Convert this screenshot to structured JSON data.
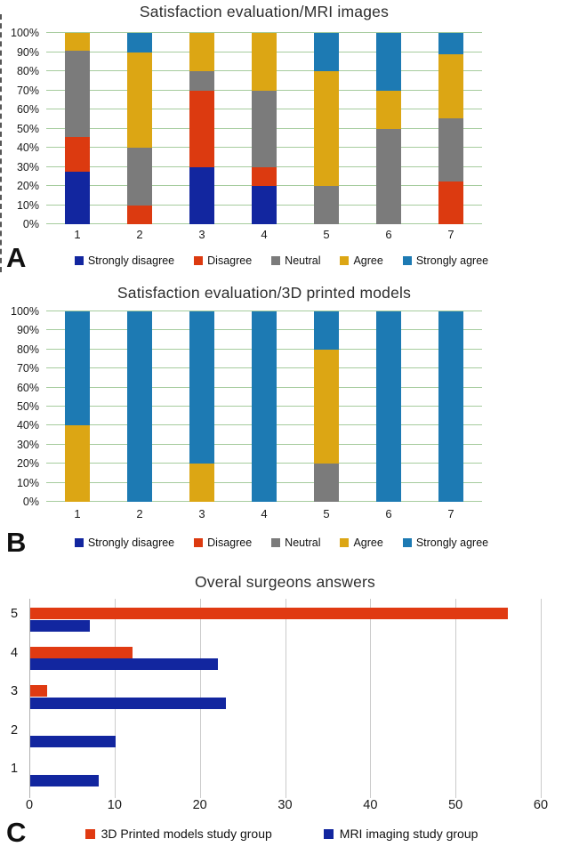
{
  "figure": {
    "panels": [
      {
        "label": "A"
      },
      {
        "label": "B"
      },
      {
        "label": "C"
      }
    ]
  },
  "palette": {
    "strongly_disagree": "#12269f",
    "disagree": "#dc3a10",
    "neutral": "#7b7b7b",
    "agree": "#dca614",
    "strongly_agree": "#1d7ab3",
    "grid_green": "#a6cc9e",
    "grid_gray": "#cbcbcb",
    "axis_gray": "#b0b0b0",
    "title_text": "#2e2e2e"
  },
  "chart_data": [
    {
      "panel": "A",
      "type": "bar",
      "subtype": "stacked-column-100",
      "title": "Satisfaction evaluation/MRI images",
      "categories": [
        "1",
        "2",
        "3",
        "4",
        "5",
        "6",
        "7"
      ],
      "y_tick_labels": [
        "0%",
        "10%",
        "20%",
        "30%",
        "40%",
        "50%",
        "60%",
        "70%",
        "80%",
        "90%",
        "100%"
      ],
      "ylim": [
        0,
        100
      ],
      "grid": true,
      "legend_position": "bottom",
      "series": [
        {
          "name": "Strongly disagree",
          "color": "#12269f",
          "values": [
            27.3,
            0,
            30,
            20,
            0,
            0,
            0
          ]
        },
        {
          "name": "Disagree",
          "color": "#dc3a10",
          "values": [
            18.2,
            10,
            40,
            10,
            0,
            0,
            22.2
          ]
        },
        {
          "name": "Neutral",
          "color": "#7b7b7b",
          "values": [
            45.4,
            30,
            10,
            40,
            20,
            50,
            33.3
          ]
        },
        {
          "name": "Agree",
          "color": "#dca614",
          "values": [
            9.1,
            50,
            20,
            30,
            60,
            20,
            33.4
          ]
        },
        {
          "name": "Strongly agree",
          "color": "#1d7ab3",
          "values": [
            0,
            10,
            0,
            0,
            20,
            30,
            11.1
          ]
        }
      ]
    },
    {
      "panel": "B",
      "type": "bar",
      "subtype": "stacked-column-100",
      "title": "Satisfaction evaluation/3D printed models",
      "categories": [
        "1",
        "2",
        "3",
        "4",
        "5",
        "6",
        "7"
      ],
      "y_tick_labels": [
        "0%",
        "10%",
        "20%",
        "30%",
        "40%",
        "50%",
        "60%",
        "70%",
        "80%",
        "90%",
        "100%"
      ],
      "ylim": [
        0,
        100
      ],
      "grid": true,
      "legend_position": "bottom",
      "series": [
        {
          "name": "Strongly disagree",
          "color": "#12269f",
          "values": [
            0,
            0,
            0,
            0,
            0,
            0,
            0
          ]
        },
        {
          "name": "Disagree",
          "color": "#dc3a10",
          "values": [
            0,
            0,
            0,
            0,
            0,
            0,
            0
          ]
        },
        {
          "name": "Neutral",
          "color": "#7b7b7b",
          "values": [
            0,
            0,
            0,
            0,
            20,
            0,
            0
          ]
        },
        {
          "name": "Agree",
          "color": "#dca614",
          "values": [
            40,
            0,
            20,
            0,
            60,
            0,
            0
          ]
        },
        {
          "name": "Strongly agree",
          "color": "#1d7ab3",
          "values": [
            60,
            100,
            80,
            100,
            20,
            100,
            100
          ]
        }
      ]
    },
    {
      "panel": "C",
      "type": "bar",
      "subtype": "grouped-bar-horizontal",
      "title": "Overal surgeons answers",
      "categories": [
        "5",
        "4",
        "3",
        "2",
        "1"
      ],
      "x_tick_labels": [
        "0",
        "10",
        "20",
        "30",
        "40",
        "50",
        "60"
      ],
      "xlim": [
        0,
        60
      ],
      "grid": true,
      "legend_position": "bottom",
      "series": [
        {
          "name": "3D Printed models study group",
          "color": "#e03a12",
          "values": [
            56,
            12,
            2,
            0,
            0
          ]
        },
        {
          "name": "MRI imaging study group",
          "color": "#12269f",
          "values": [
            7,
            22,
            23,
            10,
            8
          ]
        }
      ]
    }
  ]
}
